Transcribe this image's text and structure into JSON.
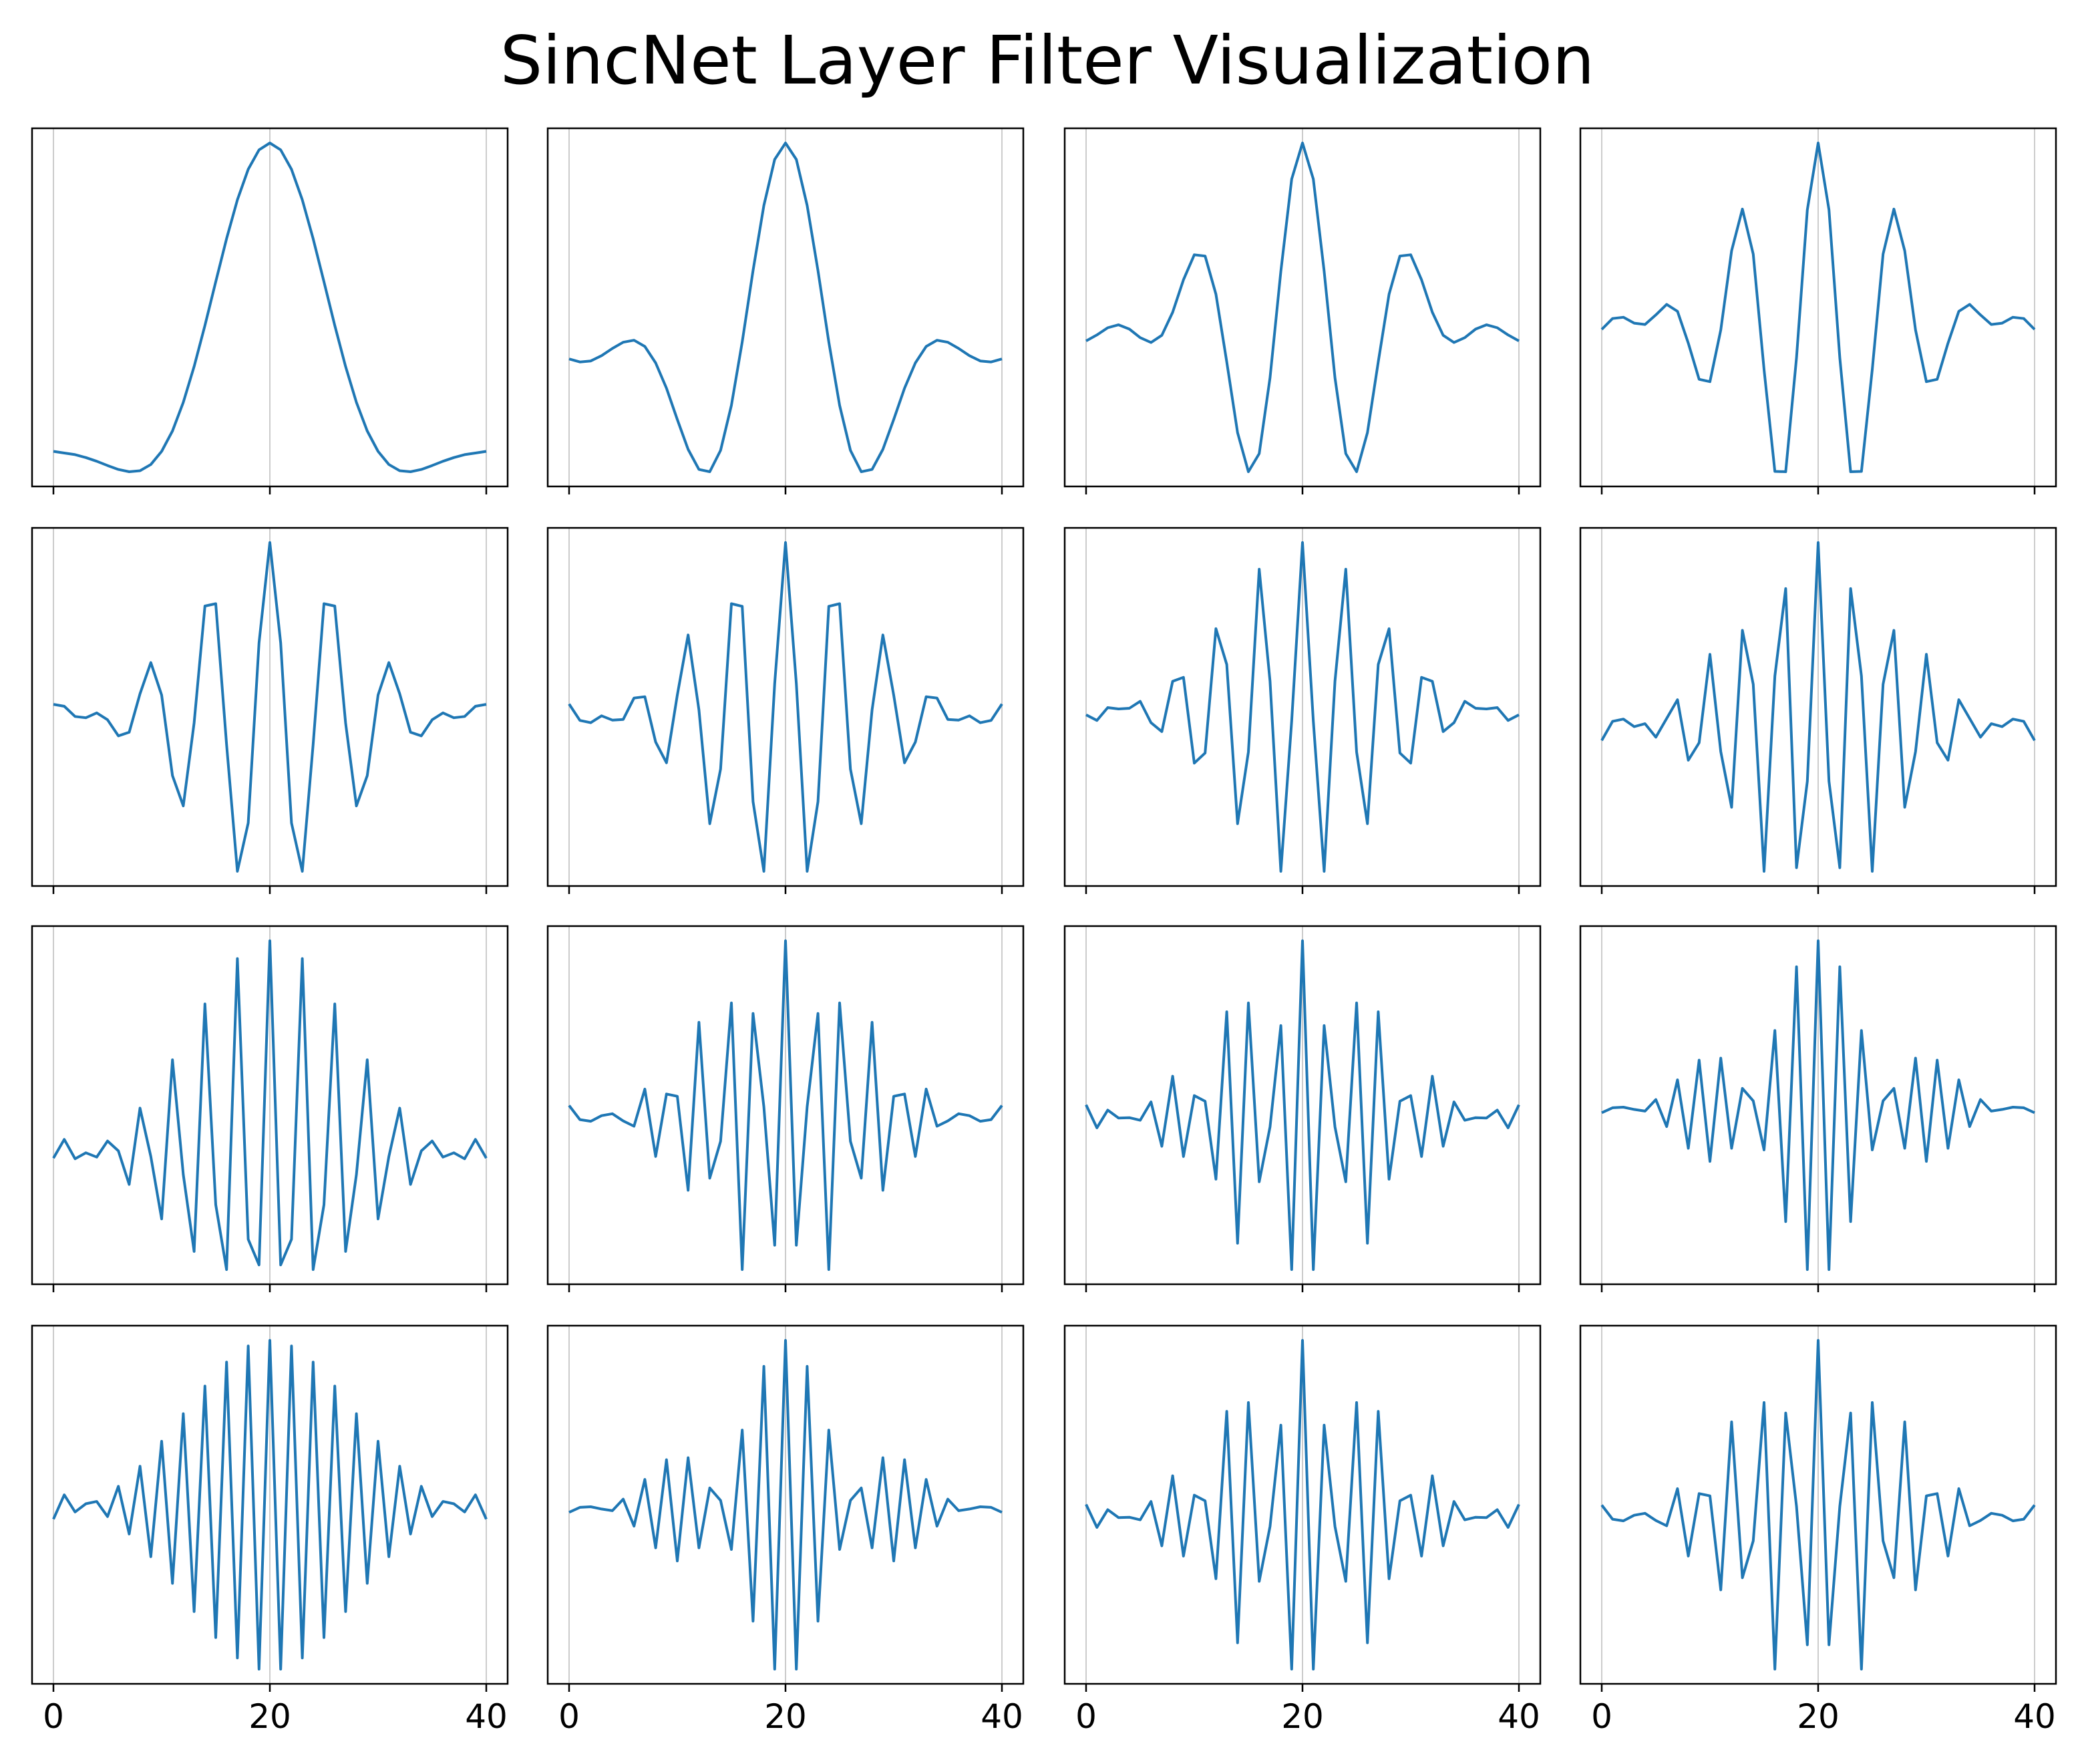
{
  "title": "SincNet Layer Filter Visualization",
  "line_color": "#1f77b4",
  "grid_color": "#cccccc",
  "chart_data": {
    "type": "line",
    "title": "SincNet Layer Filter Visualization",
    "layout": "4x4 grid of subplots, shared x axis",
    "x": {
      "min": 0,
      "max": 40,
      "ticks": [
        0,
        20,
        40
      ],
      "tick_labels": [
        "0",
        "20",
        "40"
      ],
      "tick_labels_shown_on": "bottom row only",
      "grid": "vertical lines at ticks"
    },
    "y": {
      "ticks": [],
      "tick_labels_shown": false
    },
    "legend": "none",
    "note": "Each subplot shows a windowed sinc (Hamming-windowed band-pass) filter of 41 taps sampled at x = 0..40, normalized so the peak at x = 20 is 1. Values listed per filter.",
    "series": []
  }
}
